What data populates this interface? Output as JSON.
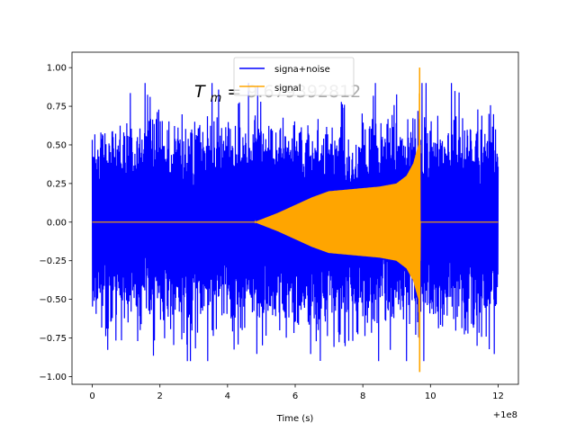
{
  "chart_data": {
    "type": "line",
    "title": "",
    "xlabel": "Time (s)",
    "ylabel": "",
    "x_offset_label": "+1e8",
    "xlim": [
      -0.6,
      12.6
    ],
    "ylim": [
      -1.05,
      1.1
    ],
    "x_ticks": [
      0,
      2,
      4,
      6,
      8,
      10,
      12
    ],
    "x_tick_labels": [
      "0",
      "2",
      "4",
      "6",
      "8",
      "10",
      "12"
    ],
    "y_ticks": [
      1.0,
      0.75,
      0.5,
      0.25,
      0.0,
      -0.25,
      -0.5,
      -0.75,
      -1.0
    ],
    "y_tick_labels": [
      "1.00",
      "0.75",
      "0.50",
      "0.25",
      "0.00",
      "−0.25",
      "−0.50",
      "−0.75",
      "−1.00"
    ],
    "legend": {
      "placement": "top-center",
      "entries": [
        {
          "name": "signa+noise",
          "color": "#0000ff"
        },
        {
          "name": "signal",
          "color": "#ffa500"
        }
      ]
    },
    "annotation": {
      "symbol": "T",
      "subscript": "m",
      "equals": "=",
      "value": "9.679392812"
    },
    "series": [
      {
        "name": "signa+noise",
        "color": "#0000ff",
        "x_range": [
          0,
          12
        ],
        "typical_envelope": 0.5,
        "max": 0.9,
        "min": -0.9
      },
      {
        "name": "signal",
        "color": "#ffa500",
        "x": [
          0,
          4.8,
          5.5,
          6.0,
          6.5,
          7.0,
          7.5,
          8.0,
          8.5,
          9.0,
          9.3,
          9.5,
          9.65,
          9.68,
          9.7,
          12.0
        ],
        "amplitude": [
          0,
          0,
          0.06,
          0.11,
          0.16,
          0.2,
          0.21,
          0.22,
          0.23,
          0.25,
          0.3,
          0.38,
          0.5,
          1.0,
          0,
          0
        ],
        "peak_time": 9.68,
        "peak_max": 1.0,
        "peak_min": -0.97
      }
    ]
  }
}
